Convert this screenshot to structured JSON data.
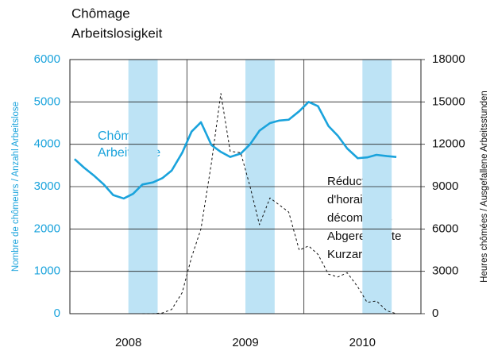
{
  "chart_data": {
    "type": "line",
    "title": [
      "Chômage",
      "Arbeitslosigkeit"
    ],
    "ylabel": "Nombre de chômeurs / Anzahl Arbeitslose",
    "y2label": "Heures chômées / Ausgefallene Arbeitsstunden",
    "xlim": [
      2008,
      2011
    ],
    "xticks": [
      2008,
      2009,
      2010,
      2011
    ],
    "xlabels": [
      {
        "value": 2008.5,
        "label": "2008"
      },
      {
        "value": 2009.5,
        "label": "2009"
      },
      {
        "value": 2010.5,
        "label": "2010"
      }
    ],
    "ylim": [
      0,
      6000
    ],
    "yticks": [
      0,
      1000,
      2000,
      3000,
      4000,
      5000,
      6000
    ],
    "y2lim": [
      0,
      18000
    ],
    "y2ticks": [
      0,
      3000,
      6000,
      9000,
      12000,
      15000,
      18000
    ],
    "grid": true,
    "shaded": [
      [
        2008.5,
        2008.75
      ],
      [
        2009.5,
        2009.75
      ],
      [
        2010.5,
        2010.75
      ]
    ],
    "shaded_color": "#bde3f5",
    "x": [
      2008.04,
      2008.12,
      2008.21,
      2008.29,
      2008.37,
      2008.46,
      2008.54,
      2008.62,
      2008.71,
      2008.79,
      2008.87,
      2008.96,
      2009.04,
      2009.12,
      2009.21,
      2009.29,
      2009.37,
      2009.46,
      2009.54,
      2009.62,
      2009.71,
      2009.79,
      2009.87,
      2009.96,
      2010.04,
      2010.12,
      2010.21,
      2010.29,
      2010.37,
      2010.46,
      2010.54,
      2010.62,
      2010.71,
      2010.79
    ],
    "series": [
      {
        "name": [
          "Chômeurs",
          "Arbeitslose"
        ],
        "color": "#1aa3dc",
        "dashed": false,
        "axis": "y",
        "values": [
          3650,
          3450,
          3250,
          3050,
          2800,
          2720,
          2830,
          3050,
          3100,
          3200,
          3380,
          3800,
          4300,
          4520,
          3980,
          3820,
          3700,
          3780,
          4000,
          4320,
          4500,
          4560,
          4580,
          4780,
          5000,
          4900,
          4430,
          4200,
          3900,
          3670,
          3690,
          3750,
          3720,
          3700
        ]
      },
      {
        "name": [
          "Réductions",
          "d'horaire",
          "décomptées",
          "Abgerechnete",
          "Kurzarbeit"
        ],
        "color": "#111111",
        "dashed": true,
        "axis": "y2",
        "values": [
          null,
          null,
          null,
          null,
          null,
          null,
          null,
          0,
          0,
          50,
          300,
          1500,
          4000,
          6000,
          10700,
          15600,
          11500,
          11400,
          9000,
          6300,
          8200,
          7700,
          7200,
          4500,
          4800,
          4200,
          2800,
          2600,
          2900,
          1900,
          800,
          900,
          200,
          0
        ]
      }
    ]
  }
}
